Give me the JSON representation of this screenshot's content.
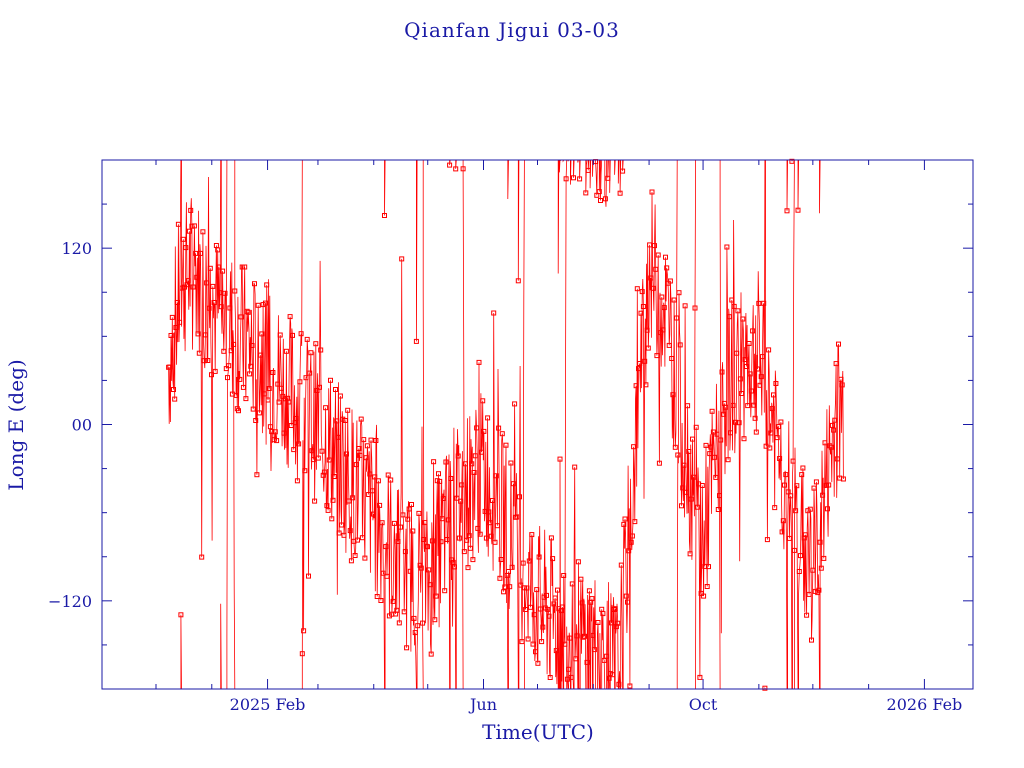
{
  "chart_data": {
    "type": "line",
    "title": "Qianfan Jigui 03-03",
    "xlabel": "Time(UTC)",
    "ylabel": "Long E (deg)",
    "xlim": [
      "2024-11-01",
      "2026-02-28"
    ],
    "ylim": [
      -180,
      180
    ],
    "x_ticks": [
      {
        "date": "2025-02-01",
        "label": "2025 Feb"
      },
      {
        "date": "2025-06-01",
        "label": "Jun"
      },
      {
        "date": "2025-10-01",
        "label": "Oct"
      },
      {
        "date": "2026-02-01",
        "label": "2026 Feb"
      }
    ],
    "y_ticks": [
      {
        "value": 120,
        "label": "120"
      },
      {
        "value": 0,
        "label": "00"
      },
      {
        "value": -120,
        "label": "−120"
      }
    ],
    "grid": false,
    "series": [
      {
        "color": "#ff0000",
        "marker": "square",
        "x_start": "2024-12-08",
        "x_end": "2025-12-18",
        "points": [
          [
            "2024-12-08",
            40
          ],
          [
            "2024-12-15",
            95
          ],
          [
            "2024-12-22",
            110
          ],
          [
            "2025-01-01",
            80
          ],
          [
            "2025-01-10",
            70
          ],
          [
            "2025-01-20",
            55
          ],
          [
            "2025-02-01",
            40
          ],
          [
            "2025-02-15",
            20
          ],
          [
            "2025-03-01",
            0
          ],
          [
            "2025-03-15",
            -30
          ],
          [
            "2025-04-01",
            -60
          ],
          [
            "2025-04-15",
            -95
          ],
          [
            "2025-05-01",
            -110
          ],
          [
            "2025-05-15",
            -55
          ],
          [
            "2025-06-01",
            -30
          ],
          [
            "2025-06-15",
            -70
          ],
          [
            "2025-07-01",
            -120
          ],
          [
            "2025-07-15",
            -140
          ],
          [
            "2025-08-01",
            -150
          ],
          [
            "2025-08-15",
            -170
          ],
          [
            "2025-09-01",
            110
          ],
          [
            "2025-09-10",
            80
          ],
          [
            "2025-09-20",
            -10
          ],
          [
            "2025-10-01",
            -80
          ],
          [
            "2025-10-15",
            30
          ],
          [
            "2025-11-01",
            50
          ],
          [
            "2025-11-15",
            -40
          ],
          [
            "2025-12-01",
            -100
          ],
          [
            "2025-12-15",
            10
          ]
        ]
      }
    ]
  }
}
